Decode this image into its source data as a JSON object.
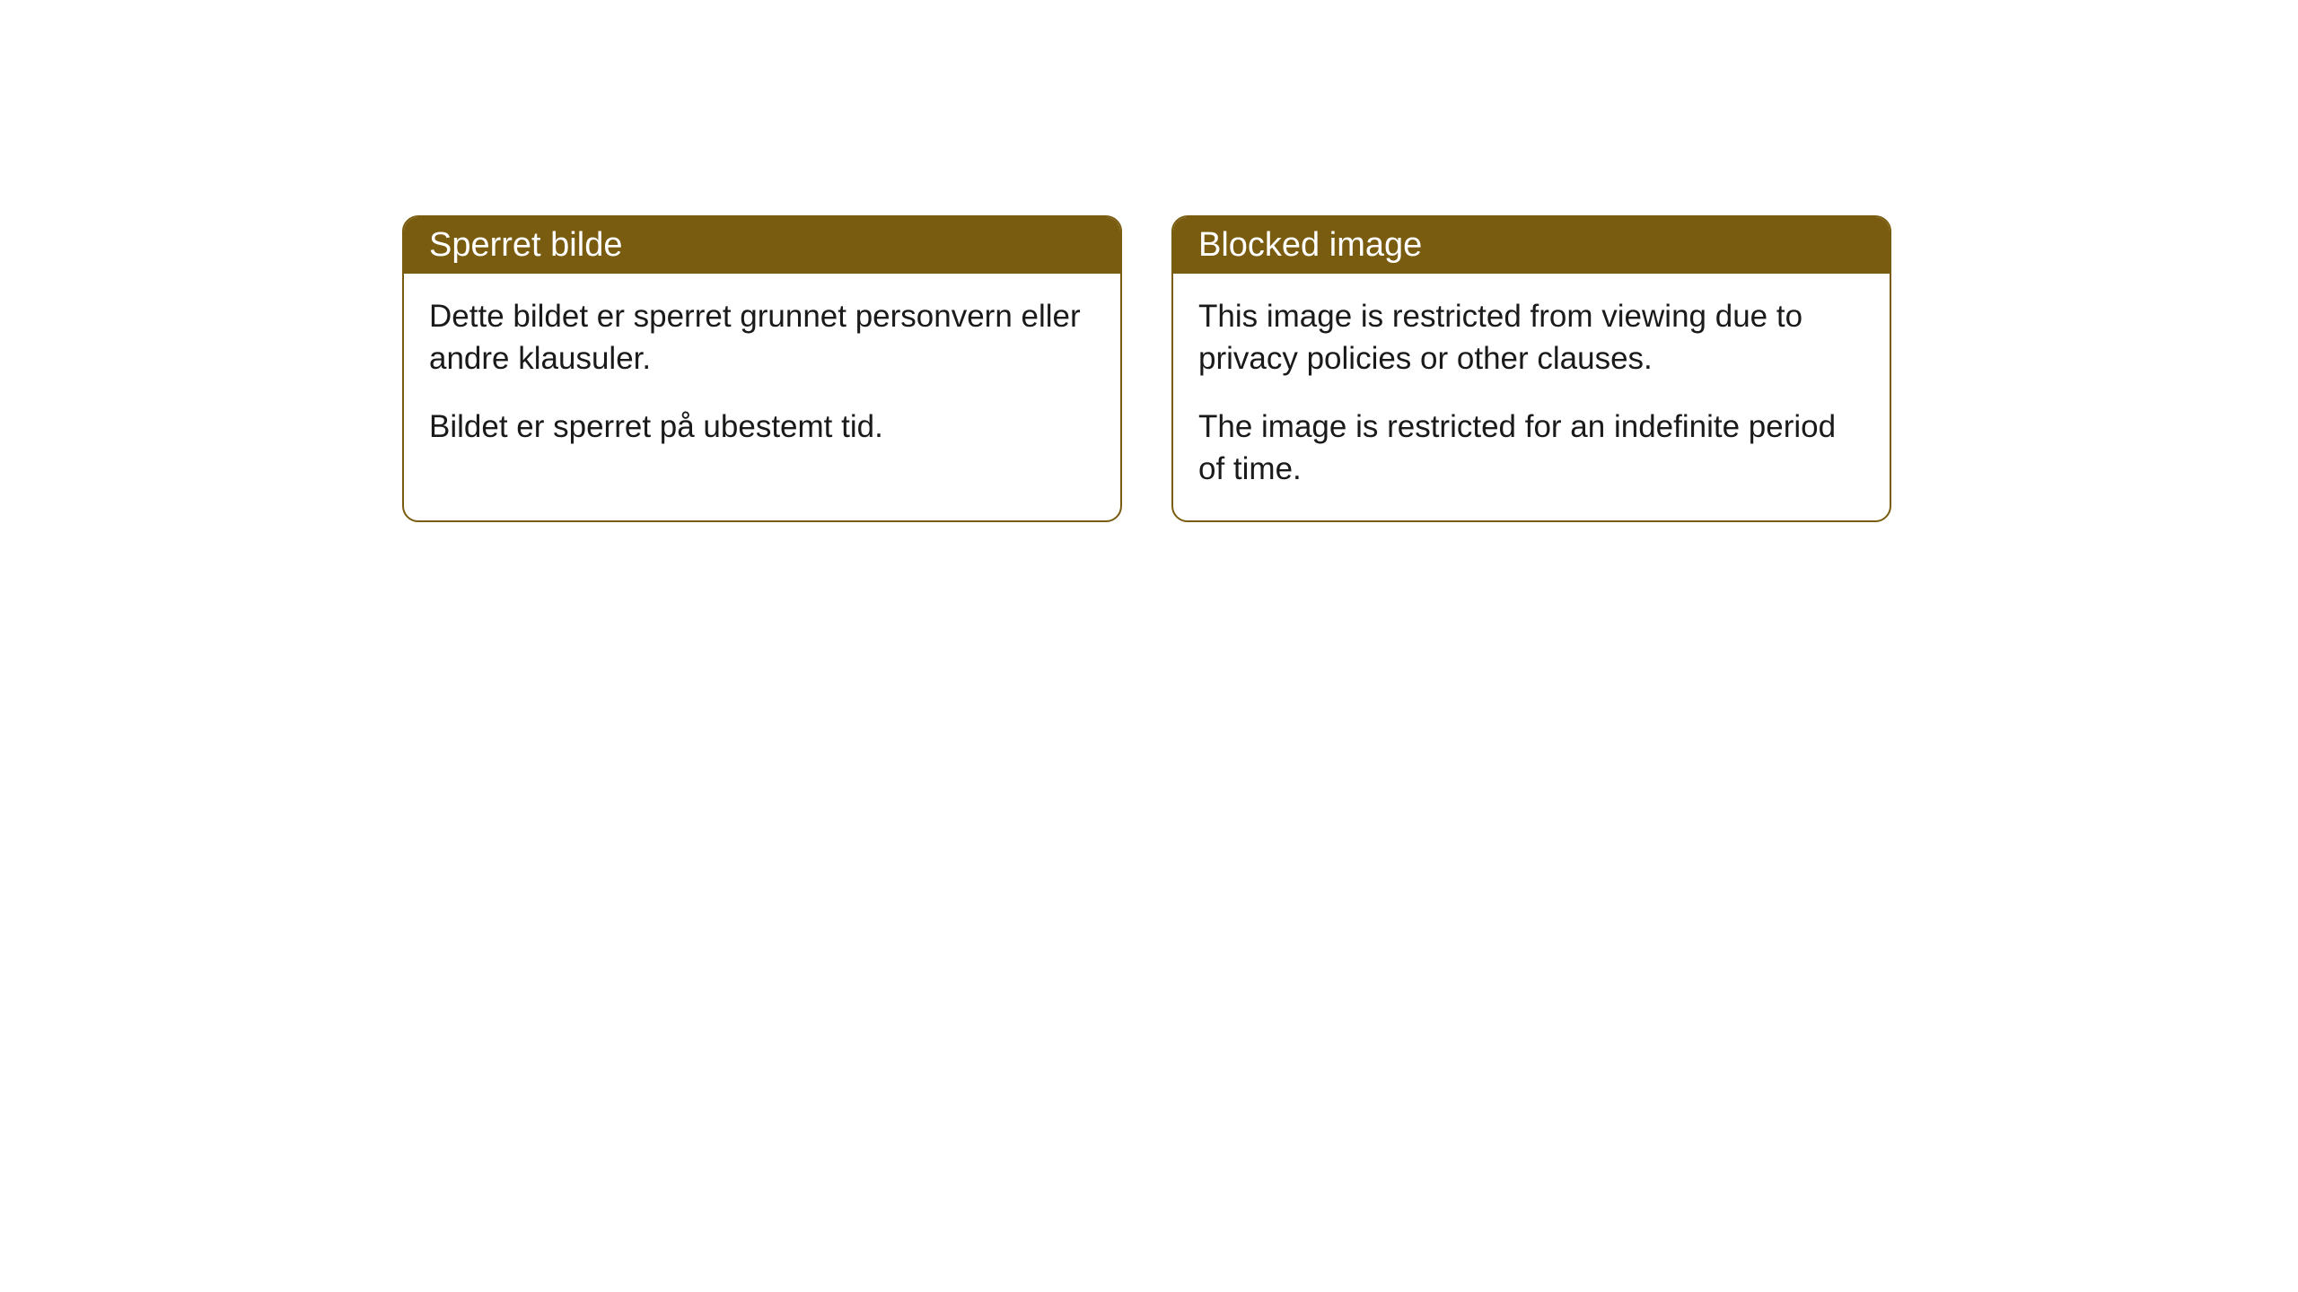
{
  "cards": [
    {
      "title": "Sperret bilde",
      "paragraph1": "Dette bildet er sperret grunnet personvern eller andre klausuler.",
      "paragraph2": "Bildet er sperret på ubestemt tid."
    },
    {
      "title": "Blocked image",
      "paragraph1": "This image is restricted from viewing due to privacy policies or other clauses.",
      "paragraph2": "The image is restricted for an indefinite period of time."
    }
  ],
  "styling": {
    "header_background": "#7a5c10",
    "header_text_color": "#ffffff",
    "border_color": "#7a5c10",
    "body_background": "#ffffff",
    "body_text_color": "#1a1a1a",
    "border_radius": 18,
    "title_fontsize": 38,
    "body_fontsize": 35
  }
}
